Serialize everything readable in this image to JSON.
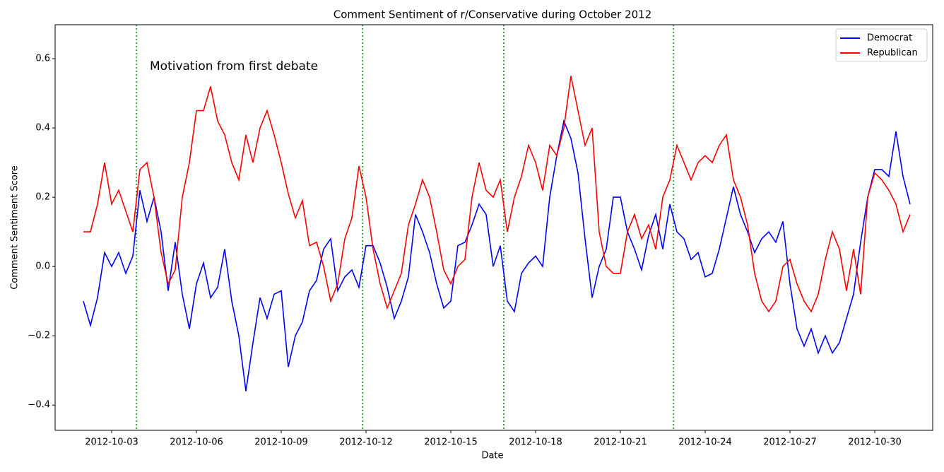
{
  "chart_data": {
    "type": "line",
    "title": "Comment Sentiment of r/Conservative during October 2012",
    "xlabel": "Date",
    "ylabel": "Comment Sentiment Score",
    "annotation": "Motivation from first debate",
    "legend": "upper right",
    "x": [
      "2012-10-02 00:00",
      "2012-10-02 06:00",
      "2012-10-02 12:00",
      "2012-10-02 18:00",
      "2012-10-03 00:00",
      "2012-10-03 06:00",
      "2012-10-03 12:00",
      "2012-10-03 18:00",
      "2012-10-04 00:00",
      "2012-10-04 06:00",
      "2012-10-04 12:00",
      "2012-10-04 18:00",
      "2012-10-05 00:00",
      "2012-10-05 06:00",
      "2012-10-05 12:00",
      "2012-10-05 18:00",
      "2012-10-06 00:00",
      "2012-10-06 06:00",
      "2012-10-06 12:00",
      "2012-10-06 18:00",
      "2012-10-07 00:00",
      "2012-10-07 06:00",
      "2012-10-07 12:00",
      "2012-10-07 18:00",
      "2012-10-08 00:00",
      "2012-10-08 06:00",
      "2012-10-08 12:00",
      "2012-10-08 18:00",
      "2012-10-09 00:00",
      "2012-10-09 06:00",
      "2012-10-09 12:00",
      "2012-10-09 18:00",
      "2012-10-10 00:00",
      "2012-10-10 06:00",
      "2012-10-10 12:00",
      "2012-10-10 18:00",
      "2012-10-11 00:00",
      "2012-10-11 06:00",
      "2012-10-11 12:00",
      "2012-10-11 18:00",
      "2012-10-12 00:00",
      "2012-10-12 06:00",
      "2012-10-12 12:00",
      "2012-10-12 18:00",
      "2012-10-13 00:00",
      "2012-10-13 06:00",
      "2012-10-13 12:00",
      "2012-10-13 18:00",
      "2012-10-14 00:00",
      "2012-10-14 06:00",
      "2012-10-14 12:00",
      "2012-10-14 18:00",
      "2012-10-15 00:00",
      "2012-10-15 06:00",
      "2012-10-15 12:00",
      "2012-10-15 18:00",
      "2012-10-16 00:00",
      "2012-10-16 06:00",
      "2012-10-16 12:00",
      "2012-10-16 18:00",
      "2012-10-17 00:00",
      "2012-10-17 06:00",
      "2012-10-17 12:00",
      "2012-10-17 18:00",
      "2012-10-18 00:00",
      "2012-10-18 06:00",
      "2012-10-18 12:00",
      "2012-10-18 18:00",
      "2012-10-19 00:00",
      "2012-10-19 06:00",
      "2012-10-19 12:00",
      "2012-10-19 18:00",
      "2012-10-20 00:00",
      "2012-10-20 06:00",
      "2012-10-20 12:00",
      "2012-10-20 18:00",
      "2012-10-21 00:00",
      "2012-10-21 06:00",
      "2012-10-21 12:00",
      "2012-10-21 18:00",
      "2012-10-22 00:00",
      "2012-10-22 06:00",
      "2012-10-22 12:00",
      "2012-10-22 18:00",
      "2012-10-23 00:00",
      "2012-10-23 06:00",
      "2012-10-23 12:00",
      "2012-10-23 18:00",
      "2012-10-24 00:00",
      "2012-10-24 06:00",
      "2012-10-24 12:00",
      "2012-10-24 18:00",
      "2012-10-25 00:00",
      "2012-10-25 06:00",
      "2012-10-25 12:00",
      "2012-10-25 18:00",
      "2012-10-26 00:00",
      "2012-10-26 06:00",
      "2012-10-26 12:00",
      "2012-10-26 18:00",
      "2012-10-27 00:00",
      "2012-10-27 06:00",
      "2012-10-27 12:00",
      "2012-10-27 18:00",
      "2012-10-28 00:00",
      "2012-10-28 06:00",
      "2012-10-28 12:00",
      "2012-10-28 18:00",
      "2012-10-29 00:00",
      "2012-10-29 06:00",
      "2012-10-29 12:00",
      "2012-10-29 18:00",
      "2012-10-30 00:00",
      "2012-10-30 06:00",
      "2012-10-30 12:00",
      "2012-10-30 18:00",
      "2012-10-31 00:00",
      "2012-10-31 06:00"
    ],
    "series": [
      {
        "name": "Democrat",
        "color": "#0000ff",
        "values": [
          -0.1,
          -0.17,
          -0.09,
          0.04,
          0.0,
          0.04,
          -0.02,
          0.03,
          0.22,
          0.13,
          0.2,
          0.1,
          -0.07,
          0.07,
          -0.08,
          -0.18,
          -0.05,
          0.01,
          -0.09,
          -0.06,
          0.05,
          -0.1,
          -0.2,
          -0.36,
          -0.22,
          -0.09,
          -0.15,
          -0.08,
          -0.07,
          -0.29,
          -0.2,
          -0.16,
          -0.07,
          -0.04,
          0.05,
          0.08,
          -0.07,
          -0.03,
          -0.01,
          -0.06,
          0.06,
          0.06,
          0.01,
          -0.06,
          -0.15,
          -0.1,
          -0.03,
          0.15,
          0.1,
          0.04,
          -0.05,
          -0.12,
          -0.1,
          0.06,
          0.07,
          0.12,
          0.18,
          0.15,
          0.0,
          0.06,
          -0.1,
          -0.13,
          -0.02,
          0.01,
          0.03,
          0.0,
          0.2,
          0.32,
          0.42,
          0.37,
          0.27,
          0.08,
          -0.09,
          0.0,
          0.05,
          0.2,
          0.2,
          0.1,
          0.05,
          -0.01,
          0.09,
          0.15,
          0.05,
          0.18,
          0.1,
          0.08,
          0.02,
          0.04,
          -0.03,
          -0.02,
          0.05,
          0.14,
          0.23,
          0.15,
          0.1,
          0.04,
          0.08,
          0.1,
          0.07,
          0.13,
          -0.05,
          -0.18,
          -0.23,
          -0.18,
          -0.25,
          -0.2,
          -0.25,
          -0.22,
          -0.15,
          -0.08,
          0.07,
          0.2,
          0.28,
          0.28,
          0.26,
          0.39,
          0.26,
          0.18
        ]
      },
      {
        "name": "Republican",
        "color": "#ff0000",
        "values": [
          0.1,
          0.1,
          0.18,
          0.3,
          0.18,
          0.22,
          0.16,
          0.1,
          0.28,
          0.3,
          0.2,
          0.04,
          -0.05,
          -0.01,
          0.2,
          0.3,
          0.45,
          0.45,
          0.52,
          0.42,
          0.38,
          0.3,
          0.25,
          0.38,
          0.3,
          0.4,
          0.45,
          0.38,
          0.3,
          0.21,
          0.14,
          0.19,
          0.06,
          0.07,
          0.0,
          -0.1,
          -0.05,
          0.08,
          0.14,
          0.29,
          0.2,
          0.05,
          -0.05,
          -0.12,
          -0.07,
          -0.02,
          0.12,
          0.18,
          0.25,
          0.2,
          0.1,
          -0.01,
          -0.05,
          0.0,
          0.02,
          0.2,
          0.3,
          0.22,
          0.2,
          0.25,
          0.1,
          0.2,
          0.26,
          0.35,
          0.3,
          0.22,
          0.35,
          0.32,
          0.4,
          0.55,
          0.45,
          0.35,
          0.4,
          0.1,
          0.0,
          -0.02,
          -0.02,
          0.1,
          0.15,
          0.08,
          0.12,
          0.05,
          0.2,
          0.25,
          0.35,
          0.3,
          0.25,
          0.3,
          0.32,
          0.3,
          0.35,
          0.38,
          0.25,
          0.2,
          0.12,
          -0.02,
          -0.1,
          -0.13,
          -0.1,
          0.0,
          0.02,
          -0.05,
          -0.1,
          -0.13,
          -0.08,
          0.02,
          0.1,
          0.05,
          -0.07,
          0.05,
          -0.08,
          0.2,
          0.27,
          0.25,
          0.22,
          0.18,
          0.1,
          0.15
        ]
      }
    ],
    "vlines": {
      "color": "#008000",
      "x": [
        "2012-10-03 21:00",
        "2012-10-11 21:00",
        "2012-10-16 21:00",
        "2012-10-22 21:00"
      ]
    },
    "xlim": [
      "2012-10-01 00:00",
      "2012-11-01 01:12"
    ],
    "xticks": [
      "2012-10-03",
      "2012-10-06",
      "2012-10-09",
      "2012-10-12",
      "2012-10-15",
      "2012-10-18",
      "2012-10-21",
      "2012-10-24",
      "2012-10-27",
      "2012-10-30"
    ],
    "ylim": [
      -0.473,
      0.698
    ],
    "yticks": [
      {
        "value": -0.4,
        "label": "−0.4"
      },
      {
        "value": -0.2,
        "label": "−0.2"
      },
      {
        "value": 0,
        "label": "0.0"
      },
      {
        "value": 0.2,
        "label": "0.2"
      },
      {
        "value": 0.4,
        "label": "0.4"
      },
      {
        "value": 0.6,
        "label": "0.6"
      }
    ]
  }
}
